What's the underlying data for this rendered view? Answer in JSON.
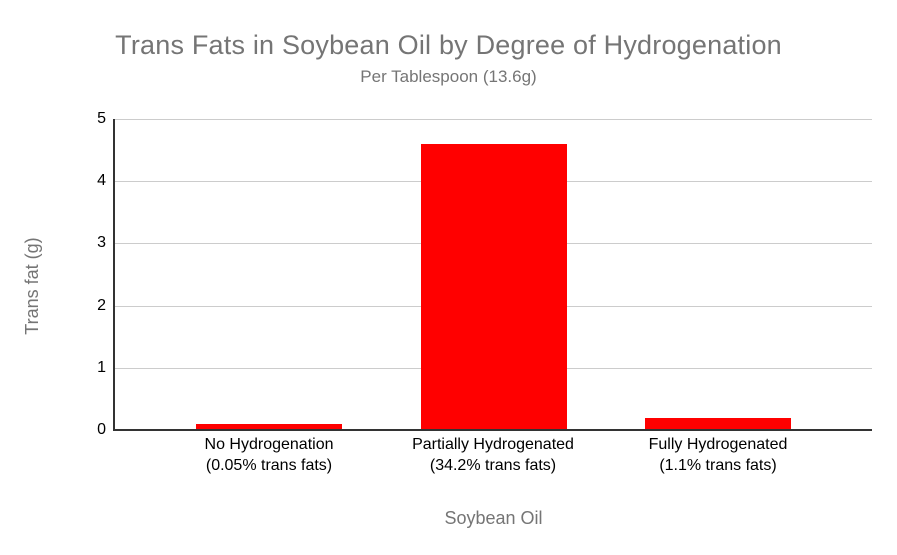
{
  "chart_data": {
    "type": "bar",
    "title": "Trans Fats in Soybean Oil by Degree of Hydrogenation",
    "subtitle": "Per Tablespoon (13.6g)",
    "xlabel": "Soybean Oil",
    "ylabel": "Trans fat (g)",
    "categories": [
      {
        "line1": "No Hydrogenation",
        "line2": "(0.05% trans fats)"
      },
      {
        "line1": "Partially Hydrogenated",
        "line2": "(34.2% trans fats)"
      },
      {
        "line1": "Fully Hydrogenated",
        "line2": "(1.1% trans fats)"
      }
    ],
    "values": [
      0.1,
      4.6,
      0.2
    ],
    "ylim": [
      0,
      5
    ],
    "yticks": [
      0,
      1,
      2,
      3,
      4,
      5
    ],
    "legend": "none",
    "grid": "horizontal",
    "colors": {
      "bar": "#ff0000",
      "gridline": "#cccccc",
      "axis_line": "#333333",
      "tick_label": "#000000",
      "title": "#757575",
      "subtitle": "#757575",
      "axis_title": "#757575",
      "background": "#ffffff"
    }
  }
}
